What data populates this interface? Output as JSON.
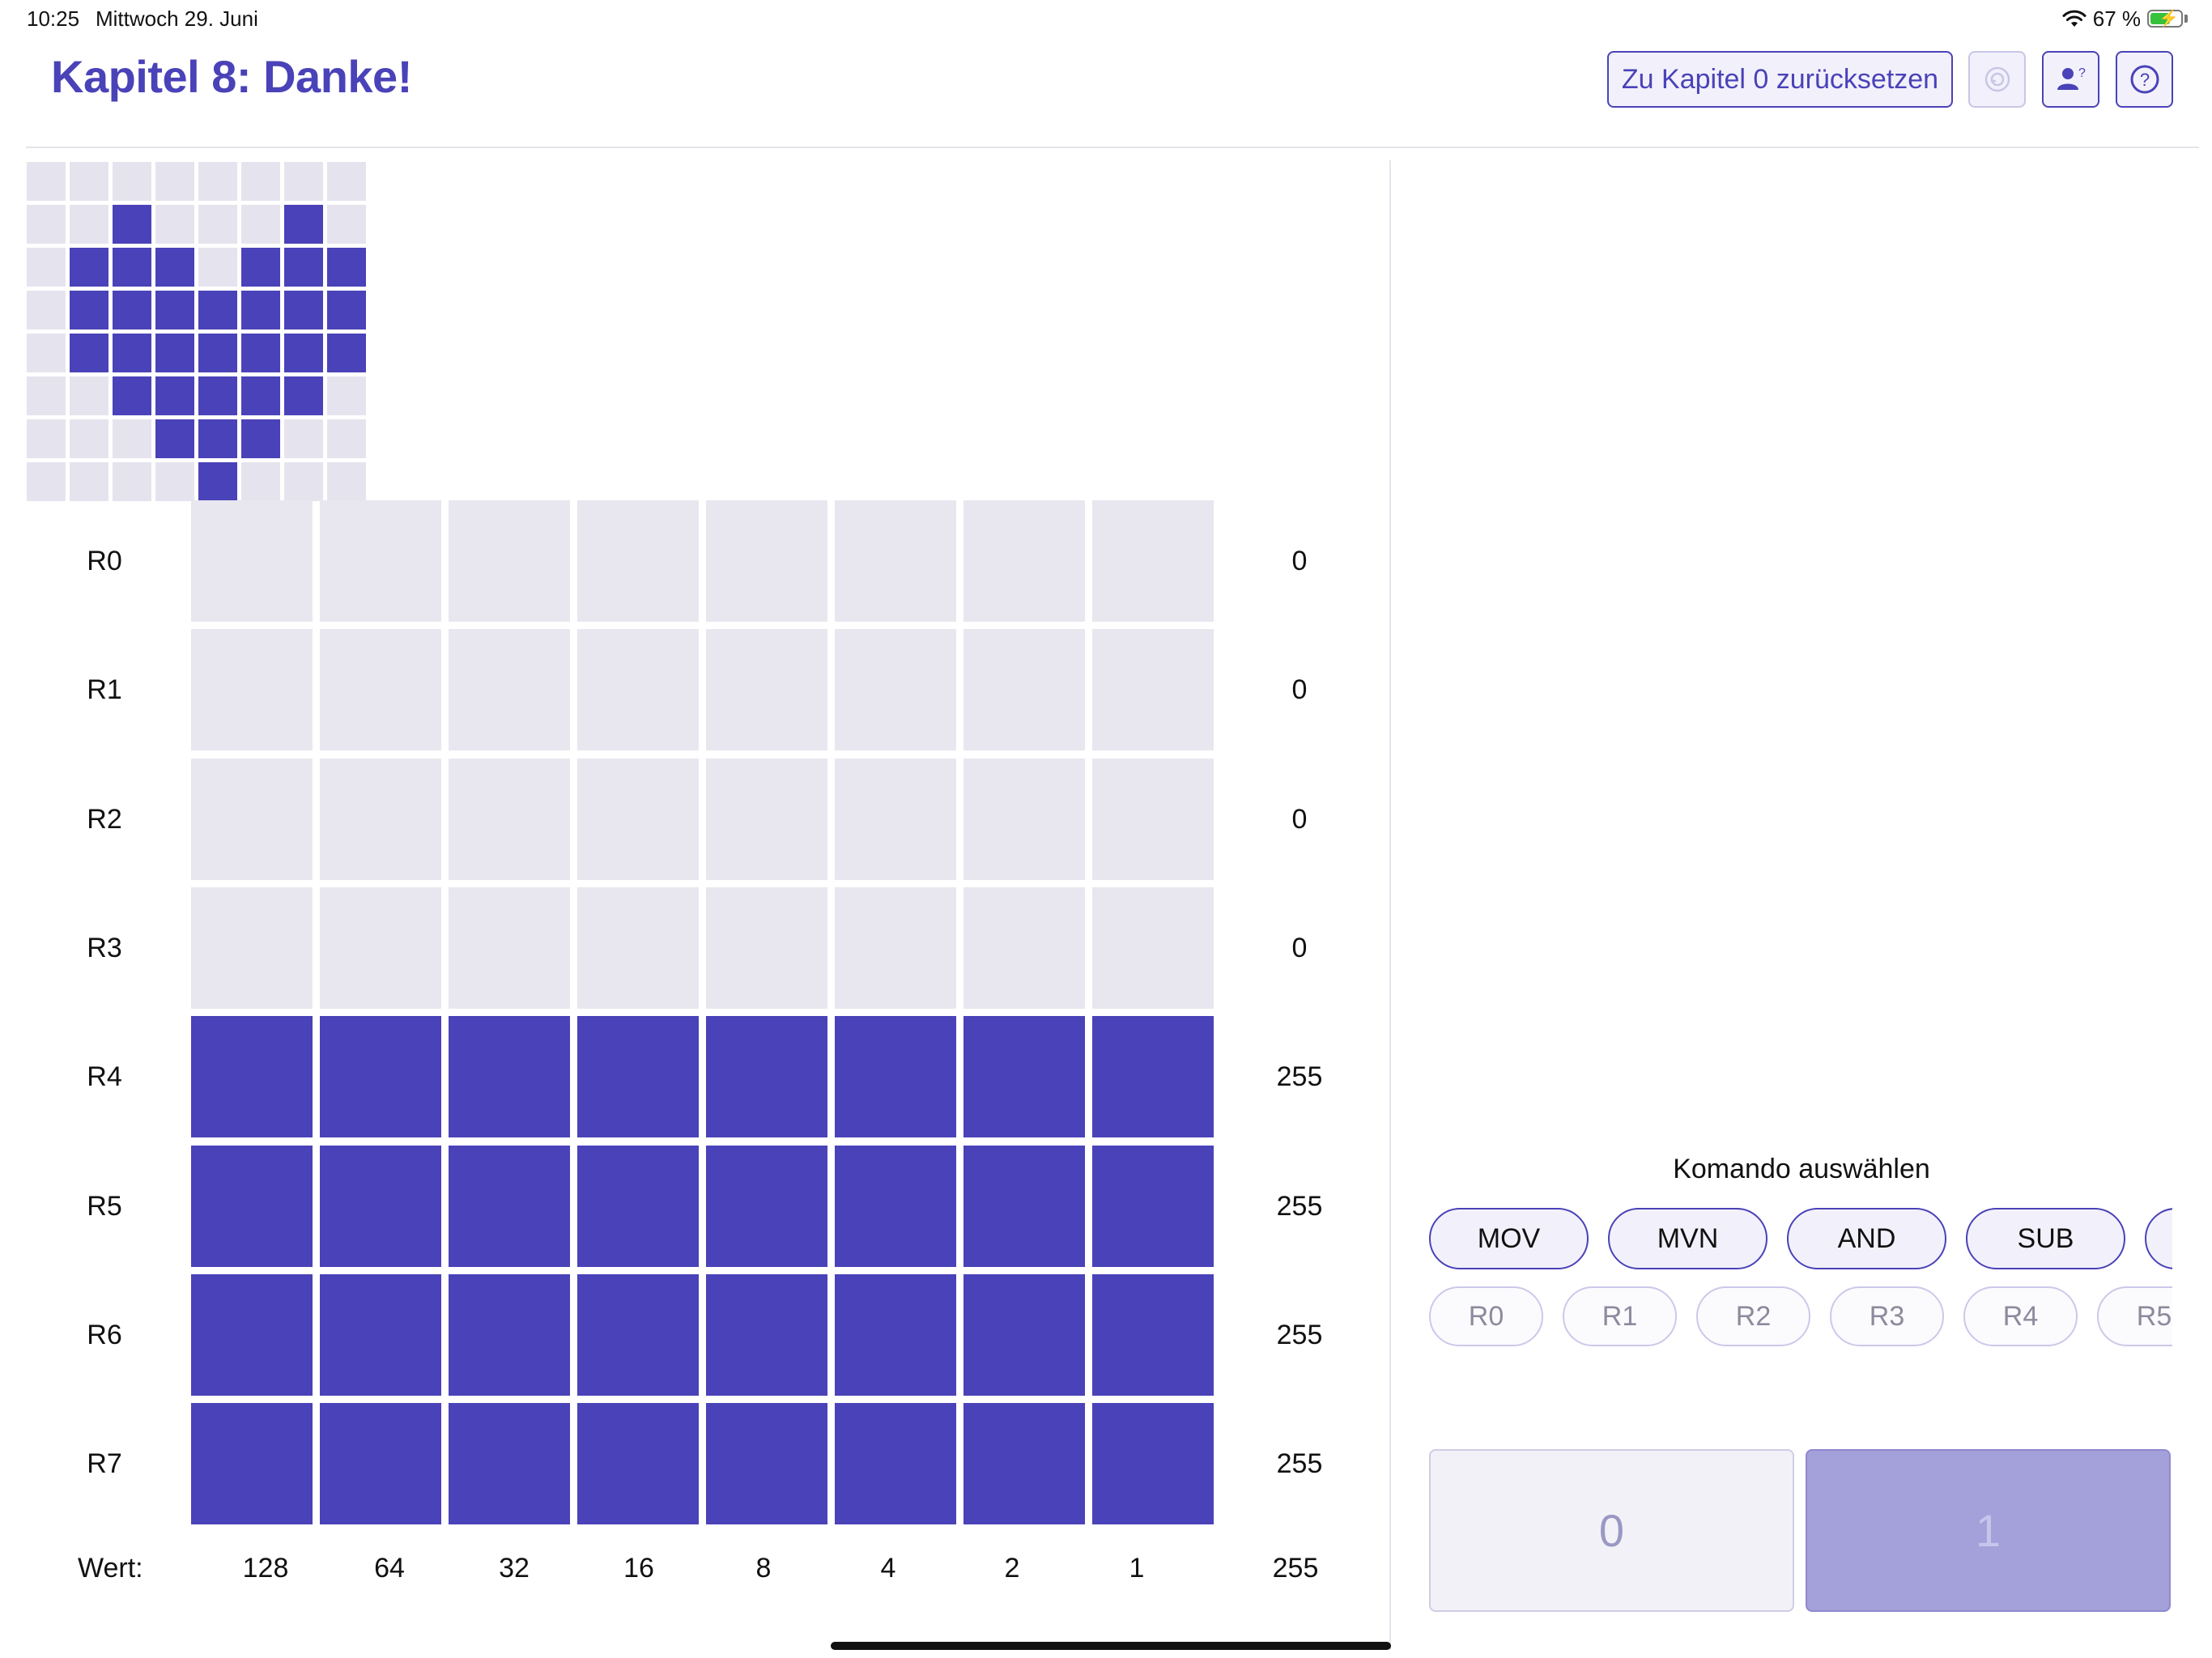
{
  "status_bar": {
    "time": "10:25",
    "date": "Mittwoch 29. Juni",
    "battery_text": "67 %",
    "battery_level": 0.67
  },
  "header": {
    "title": "Kapitel 8: Danke!",
    "reset_button": "Zu Kapitel 0 zurücksetzen",
    "icons": [
      "history-icon",
      "user-help-icon",
      "help-icon"
    ]
  },
  "pixel_preview": {
    "rows": [
      [
        0,
        0,
        0,
        0,
        0,
        0,
        0,
        0
      ],
      [
        0,
        0,
        1,
        0,
        0,
        0,
        1,
        0
      ],
      [
        0,
        1,
        1,
        1,
        0,
        1,
        1,
        1
      ],
      [
        0,
        1,
        1,
        1,
        1,
        1,
        1,
        1
      ],
      [
        0,
        1,
        1,
        1,
        1,
        1,
        1,
        1
      ],
      [
        0,
        0,
        1,
        1,
        1,
        1,
        1,
        0
      ],
      [
        0,
        0,
        0,
        1,
        1,
        1,
        0,
        0
      ],
      [
        0,
        0,
        0,
        0,
        1,
        0,
        0,
        0
      ]
    ]
  },
  "registers": [
    {
      "name": "R0",
      "value": "0",
      "bits": [
        0,
        0,
        0,
        0,
        0,
        0,
        0,
        0
      ]
    },
    {
      "name": "R1",
      "value": "0",
      "bits": [
        0,
        0,
        0,
        0,
        0,
        0,
        0,
        0
      ]
    },
    {
      "name": "R2",
      "value": "0",
      "bits": [
        0,
        0,
        0,
        0,
        0,
        0,
        0,
        0
      ]
    },
    {
      "name": "R3",
      "value": "0",
      "bits": [
        0,
        0,
        0,
        0,
        0,
        0,
        0,
        0
      ]
    },
    {
      "name": "R4",
      "value": "255",
      "bits": [
        1,
        1,
        1,
        1,
        1,
        1,
        1,
        1
      ]
    },
    {
      "name": "R5",
      "value": "255",
      "bits": [
        1,
        1,
        1,
        1,
        1,
        1,
        1,
        1
      ]
    },
    {
      "name": "R6",
      "value": "255",
      "bits": [
        1,
        1,
        1,
        1,
        1,
        1,
        1,
        1
      ]
    },
    {
      "name": "R7",
      "value": "255",
      "bits": [
        1,
        1,
        1,
        1,
        1,
        1,
        1,
        1
      ]
    }
  ],
  "weights": {
    "label": "Wert:",
    "values": [
      "128",
      "64",
      "32",
      "16",
      "8",
      "4",
      "2",
      "1"
    ],
    "total": "255"
  },
  "command_panel": {
    "title": "Komando auswählen",
    "commands": [
      "MOV",
      "MVN",
      "AND",
      "SUB",
      ""
    ],
    "register_choices": [
      "R0",
      "R1",
      "R2",
      "R3",
      "R4",
      "R5"
    ],
    "bit_buttons": {
      "zero": "0",
      "one": "1"
    }
  },
  "colors": {
    "accent": "#4a42b8",
    "cell_off": "#e8e7ef"
  }
}
